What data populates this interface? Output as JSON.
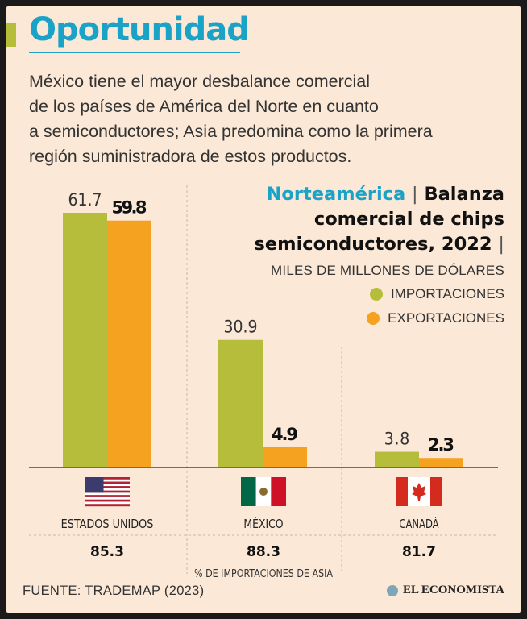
{
  "header": {
    "title": "Oportunidad",
    "intro_lines": [
      "México tiene el mayor desbalance comercial",
      "de los países de América del Norte en cuanto",
      "a semiconductores; Asia predomina como la primera",
      "región suministradora de estos productos."
    ]
  },
  "legend": {
    "region": "Norteamérica",
    "title_rest_1": "Balanza",
    "title_line2": "comercial de chips",
    "title_line3": "semiconductores, 2022",
    "unit": "MILES DE MILLONES DE DÓLARES",
    "imports_label": "IMPORTACIONES",
    "exports_label": "EXPORTACIONES"
  },
  "colors": {
    "imports": "#b6bd3a",
    "exports": "#f5a221",
    "background": "#fbe8d6",
    "accent": "#1aa3c7"
  },
  "chart_data": {
    "type": "bar",
    "title": "Norteamérica | Balanza comercial de chips semiconductores, 2022",
    "ylabel": "Miles de millones de dólares",
    "ylim": [
      0,
      65
    ],
    "categories": [
      "ESTADOS UNIDOS",
      "MÉXICO",
      "CANADÁ"
    ],
    "series": [
      {
        "name": "IMPORTACIONES",
        "values": [
          61.7,
          30.9,
          3.8
        ],
        "labels": [
          "61.7",
          "30.9",
          "3.8"
        ]
      },
      {
        "name": "EXPORTACIONES",
        "values": [
          59.8,
          4.9,
          2.3
        ],
        "labels": [
          "59.8",
          "4.9",
          "2.3"
        ]
      }
    ],
    "asia_share": {
      "label": "% DE IMPORTACIONES DE ASIA",
      "values": [
        "85.3",
        "88.3",
        "81.7"
      ]
    },
    "flags": [
      "us-flag",
      "mexico-flag",
      "canada-flag"
    ]
  },
  "footer": {
    "source": "FUENTE: TRADEMAP (2023)",
    "brand": "EL ECONOMISTA"
  }
}
